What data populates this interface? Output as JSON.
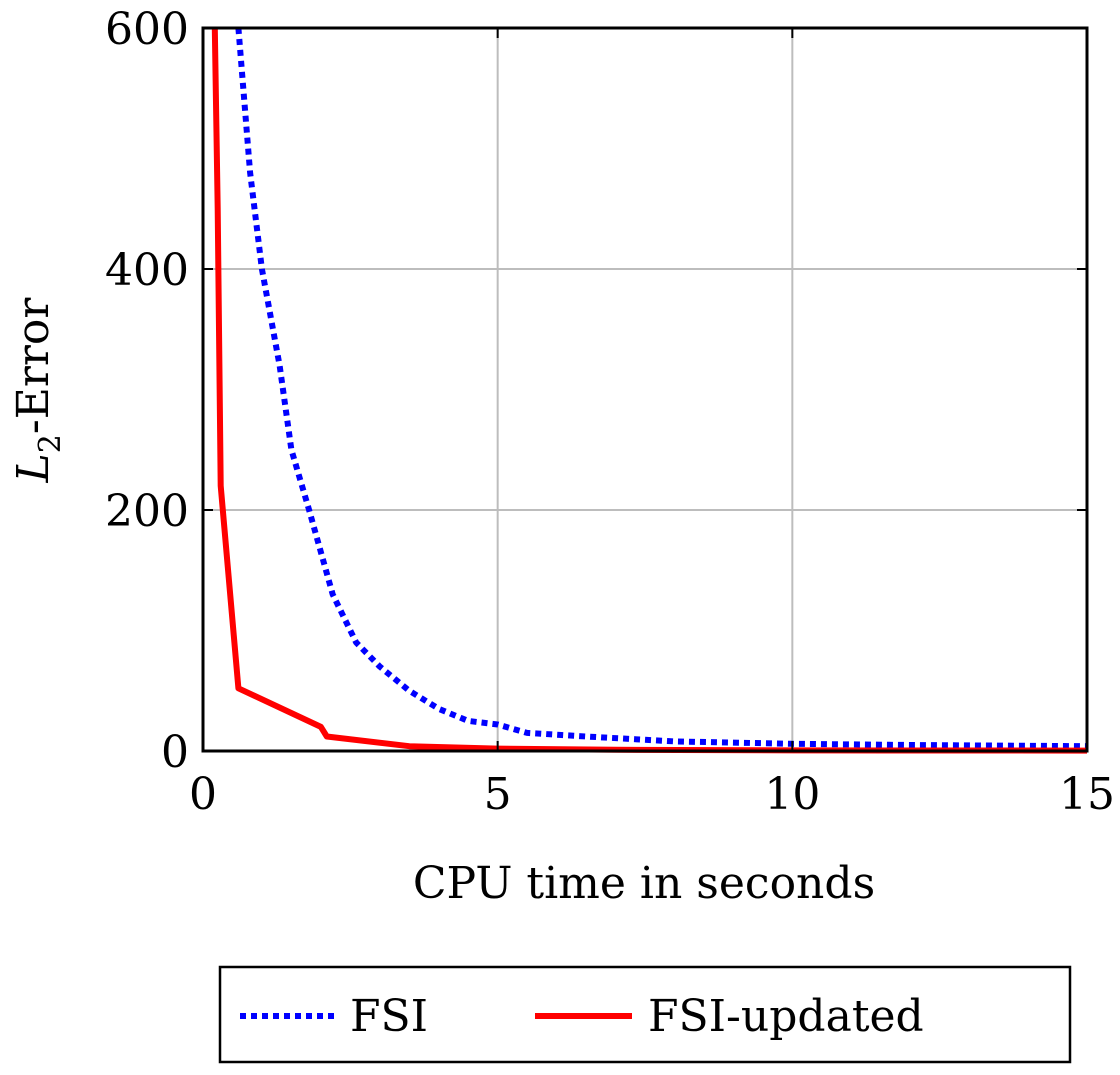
{
  "chart_data": {
    "type": "line",
    "title": "",
    "xlabel": "CPU time in seconds",
    "ylabel_main": "L",
    "ylabel_sub": "2",
    "ylabel_rest": "-Error",
    "xlim": [
      0,
      15
    ],
    "ylim": [
      0,
      600
    ],
    "xticks": [
      0,
      5,
      10,
      15
    ],
    "yticks": [
      0,
      200,
      400,
      600
    ],
    "grid": true,
    "legend_position": "bottom",
    "series": [
      {
        "name": "FSI",
        "color": "#0000ff",
        "style": "dotted",
        "x": [
          0.6,
          0.8,
          1.0,
          1.3,
          1.5,
          1.8,
          2.2,
          2.6,
          3.0,
          3.5,
          4.0,
          4.5,
          5.0,
          5.5,
          6.5,
          8.0,
          10.0,
          12.0,
          15.0
        ],
        "y": [
          600,
          480,
          400,
          320,
          250,
          200,
          130,
          90,
          70,
          50,
          35,
          25,
          22,
          15,
          12,
          8,
          6,
          5,
          4
        ]
      },
      {
        "name": "FSI-updated",
        "color": "#ff0000",
        "style": "solid",
        "x": [
          0.2,
          0.25,
          0.3,
          0.6,
          2.0,
          2.1,
          3.5,
          5.0,
          7.0,
          10.0,
          15.0
        ],
        "y": [
          600,
          450,
          220,
          52,
          20,
          12,
          4,
          2,
          1,
          0.5,
          0.3
        ]
      }
    ]
  }
}
